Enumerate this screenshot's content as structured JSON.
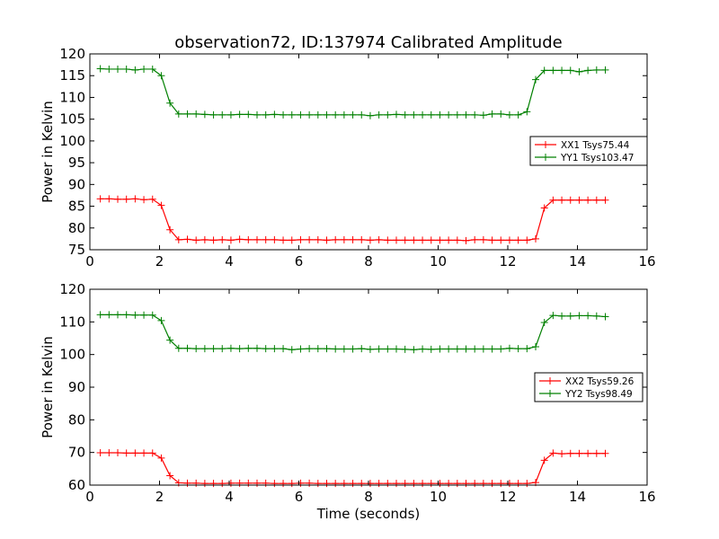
{
  "title": "observation72, ID:137974 Calibrated Amplitude",
  "chart_data": [
    {
      "type": "line",
      "title": "observation72, ID:137974 Calibrated Amplitude",
      "xlabel": "",
      "ylabel": "Power in Kelvin",
      "xlim": [
        0,
        16
      ],
      "ylim": [
        75,
        120
      ],
      "xticks": [
        "0",
        "2",
        "4",
        "6",
        "8",
        "10",
        "12",
        "14",
        "16"
      ],
      "yticks": [
        "75",
        "80",
        "85",
        "90",
        "95",
        "100",
        "105",
        "110",
        "115",
        "120"
      ],
      "legend_position": "right",
      "x": [
        0.3,
        0.55,
        0.8,
        1.05,
        1.3,
        1.55,
        1.8,
        2.05,
        2.3,
        2.55,
        2.8,
        3.05,
        3.3,
        3.55,
        3.8,
        4.05,
        4.3,
        4.55,
        4.8,
        5.05,
        5.3,
        5.55,
        5.8,
        6.05,
        6.3,
        6.55,
        6.8,
        7.05,
        7.3,
        7.55,
        7.8,
        8.05,
        8.3,
        8.55,
        8.8,
        9.05,
        9.3,
        9.55,
        9.8,
        10.05,
        10.3,
        10.55,
        10.8,
        11.05,
        11.3,
        11.55,
        11.8,
        12.05,
        12.3,
        12.55,
        12.8,
        13.05,
        13.3,
        13.55,
        13.8,
        14.05,
        14.3,
        14.55,
        14.8
      ],
      "series": [
        {
          "name": "XX1 Tsys75.44",
          "color": "#ff0000",
          "values": [
            86.7,
            86.7,
            86.6,
            86.6,
            86.7,
            86.5,
            86.6,
            85.2,
            79.6,
            77.3,
            77.4,
            77.2,
            77.3,
            77.2,
            77.3,
            77.2,
            77.4,
            77.3,
            77.3,
            77.3,
            77.3,
            77.2,
            77.2,
            77.3,
            77.3,
            77.3,
            77.2,
            77.3,
            77.3,
            77.3,
            77.3,
            77.2,
            77.3,
            77.2,
            77.2,
            77.2,
            77.2,
            77.2,
            77.2,
            77.2,
            77.2,
            77.2,
            77.1,
            77.3,
            77.3,
            77.2,
            77.2,
            77.2,
            77.2,
            77.2,
            77.5,
            84.6,
            86.4,
            86.4,
            86.4,
            86.4,
            86.4,
            86.4,
            86.4
          ]
        },
        {
          "name": "YY1 Tsys103.47",
          "color": "#008000",
          "values": [
            116.6,
            116.5,
            116.5,
            116.5,
            116.3,
            116.5,
            116.5,
            115.0,
            108.7,
            106.2,
            106.2,
            106.2,
            106.1,
            106.0,
            106.0,
            106.0,
            106.1,
            106.1,
            106.0,
            106.0,
            106.1,
            106.0,
            106.0,
            106.0,
            106.0,
            106.0,
            106.0,
            106.0,
            106.0,
            106.0,
            106.0,
            105.8,
            106.0,
            106.0,
            106.1,
            106.0,
            106.0,
            106.0,
            106.0,
            106.0,
            106.0,
            106.0,
            106.0,
            106.0,
            105.9,
            106.2,
            106.2,
            106.0,
            106.0,
            106.7,
            114.1,
            116.2,
            116.2,
            116.2,
            116.2,
            115.9,
            116.2,
            116.3,
            116.3
          ]
        }
      ]
    },
    {
      "type": "line",
      "title": "",
      "xlabel": "Time (seconds)",
      "ylabel": "Power in Kelvin",
      "xlim": [
        0,
        16
      ],
      "ylim": [
        60,
        120
      ],
      "xticks": [
        "0",
        "2",
        "4",
        "6",
        "8",
        "10",
        "12",
        "14",
        "16"
      ],
      "yticks": [
        "60",
        "70",
        "80",
        "90",
        "100",
        "110",
        "120"
      ],
      "legend_position": "right",
      "x": [
        0.3,
        0.55,
        0.8,
        1.05,
        1.3,
        1.55,
        1.8,
        2.05,
        2.3,
        2.55,
        2.8,
        3.05,
        3.3,
        3.55,
        3.8,
        4.05,
        4.3,
        4.55,
        4.8,
        5.05,
        5.3,
        5.55,
        5.8,
        6.05,
        6.3,
        6.55,
        6.8,
        7.05,
        7.3,
        7.55,
        7.8,
        8.05,
        8.3,
        8.55,
        8.8,
        9.05,
        9.3,
        9.55,
        9.8,
        10.05,
        10.3,
        10.55,
        10.8,
        11.05,
        11.3,
        11.55,
        11.8,
        12.05,
        12.3,
        12.55,
        12.8,
        13.05,
        13.3,
        13.55,
        13.8,
        14.05,
        14.3,
        14.55,
        14.8
      ],
      "series": [
        {
          "name": "XX2 Tsys59.26",
          "color": "#ff0000",
          "values": [
            69.9,
            69.9,
            69.9,
            69.8,
            69.8,
            69.8,
            69.8,
            68.3,
            62.9,
            60.7,
            60.6,
            60.6,
            60.5,
            60.5,
            60.5,
            60.6,
            60.6,
            60.6,
            60.6,
            60.6,
            60.5,
            60.5,
            60.5,
            60.6,
            60.6,
            60.5,
            60.5,
            60.5,
            60.5,
            60.5,
            60.5,
            60.5,
            60.5,
            60.5,
            60.5,
            60.5,
            60.5,
            60.5,
            60.5,
            60.5,
            60.5,
            60.5,
            60.5,
            60.5,
            60.5,
            60.5,
            60.5,
            60.5,
            60.5,
            60.5,
            60.8,
            67.6,
            69.8,
            69.6,
            69.7,
            69.7,
            69.7,
            69.7,
            69.7
          ]
        },
        {
          "name": "YY2 Tsys98.49",
          "color": "#008000",
          "values": [
            112.2,
            112.2,
            112.2,
            112.2,
            112.1,
            112.1,
            112.1,
            110.4,
            104.4,
            101.9,
            101.9,
            101.8,
            101.8,
            101.8,
            101.8,
            101.9,
            101.8,
            101.9,
            101.9,
            101.8,
            101.8,
            101.8,
            101.5,
            101.7,
            101.8,
            101.8,
            101.8,
            101.7,
            101.7,
            101.7,
            101.8,
            101.6,
            101.7,
            101.7,
            101.7,
            101.6,
            101.5,
            101.7,
            101.6,
            101.7,
            101.7,
            101.7,
            101.7,
            101.7,
            101.7,
            101.7,
            101.7,
            101.9,
            101.8,
            101.8,
            102.4,
            109.8,
            112.0,
            111.8,
            111.8,
            111.9,
            111.9,
            111.8,
            111.6
          ]
        }
      ]
    }
  ]
}
